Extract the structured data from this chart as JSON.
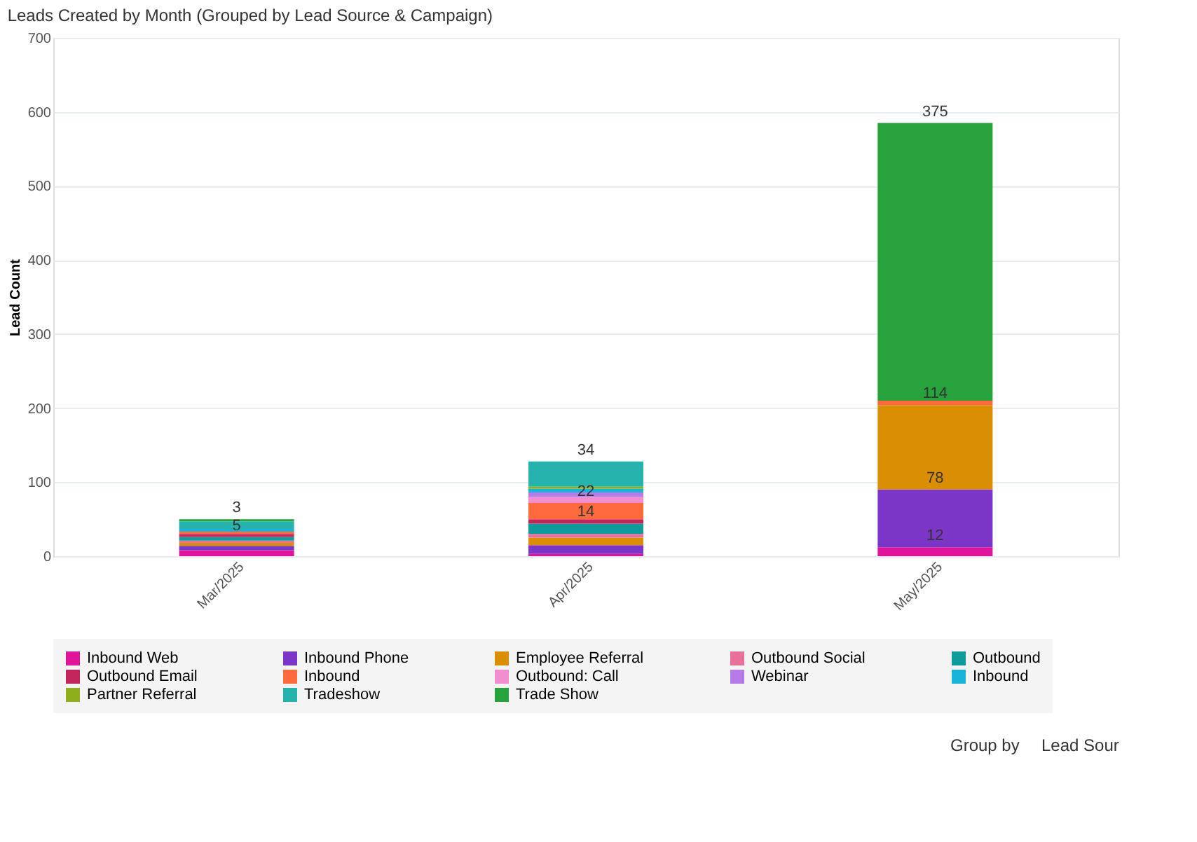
{
  "chart_data": {
    "type": "bar",
    "stacked": true,
    "title": "Leads Created by Month (Grouped by Lead Source & Campaign)",
    "ylabel": "Lead Count",
    "categories": [
      "Mar/2025",
      "Apr/2025",
      "May/2025"
    ],
    "ylim": [
      0,
      700
    ],
    "yticks": [
      0,
      100,
      200,
      300,
      400,
      500,
      600,
      700
    ],
    "grid": "y",
    "legend": "bottom",
    "series": [
      {
        "name": "Inbound Web",
        "color": "#e0149b",
        "values": [
          8,
          3,
          12
        ],
        "value_labels": [
          null,
          null,
          "12"
        ]
      },
      {
        "name": "Inbound Phone",
        "color": "#7b36c8",
        "values": [
          6,
          12,
          78
        ],
        "value_labels": [
          null,
          null,
          "78"
        ]
      },
      {
        "name": "Employee Referral",
        "color": "#d98e04",
        "values": [
          4,
          10,
          114
        ],
        "value_labels": [
          null,
          null,
          "114"
        ]
      },
      {
        "name": "Outbound Social",
        "color": "#e8709a",
        "values": [
          3,
          5,
          null
        ]
      },
      {
        "name": "Outbound",
        "color": "#0f9b9b",
        "values": [
          5,
          14,
          null
        ],
        "value_labels": [
          "5",
          "14",
          null
        ]
      },
      {
        "name": "Outbound Email",
        "color": "#c2255c",
        "values": [
          4,
          6,
          null
        ]
      },
      {
        "name": "Inbound",
        "color": "#ff6a3d",
        "values": [
          3,
          22,
          6
        ],
        "value_labels": [
          null,
          "22",
          null
        ]
      },
      {
        "name": "Outbound: Call",
        "color": "#f08ecf",
        "values": [
          null,
          8,
          null
        ]
      },
      {
        "name": "Webinar",
        "color": "#b77be8",
        "values": [
          null,
          6,
          null
        ]
      },
      {
        "name": "Inbound",
        "color": "#1ab4d8",
        "values": [
          4,
          5,
          null
        ]
      },
      {
        "name": "Partner Referral",
        "color": "#8fae1b",
        "values": [
          null,
          3,
          null
        ]
      },
      {
        "name": "Tradeshow",
        "color": "#26b3ad",
        "values": [
          10,
          34,
          null
        ],
        "value_labels": [
          null,
          "34",
          null
        ]
      },
      {
        "name": "Trade Show",
        "color": "#28a23c",
        "values": [
          3,
          null,
          375
        ],
        "value_labels": [
          "3",
          null,
          "375"
        ]
      }
    ],
    "annotations": [
      "Group by",
      "Lead Sour"
    ]
  }
}
